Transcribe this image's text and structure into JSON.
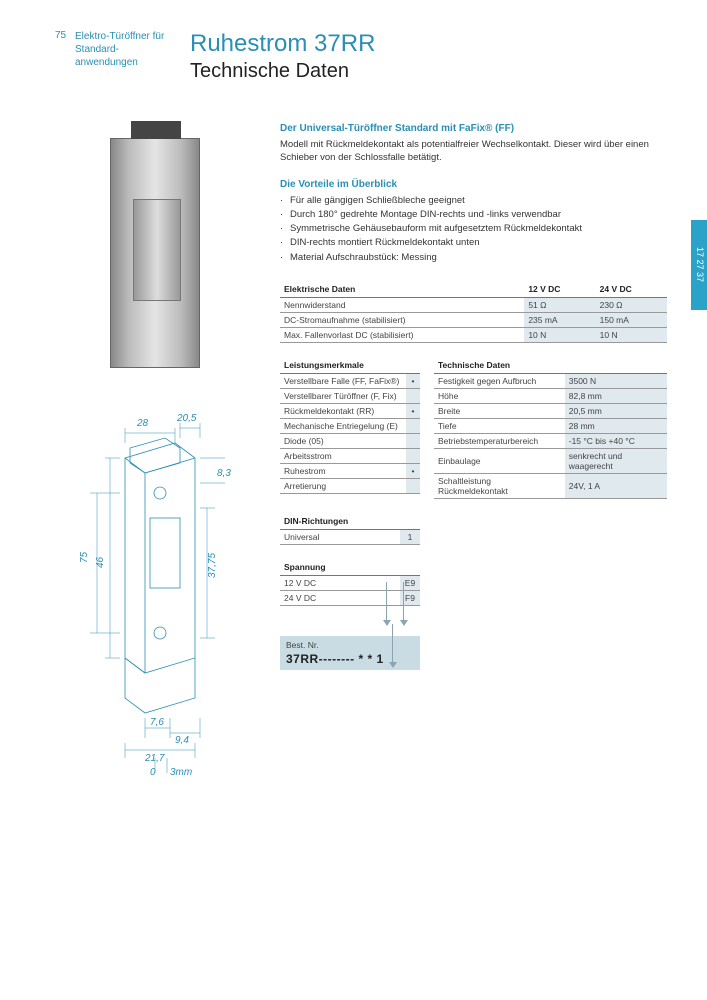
{
  "pageNumber": "75",
  "headerLabel": "Elektro-Türöffner für Standard-anwendungen",
  "titleMain": "Ruhestrom 37RR",
  "titleSub": "Technische Daten",
  "sideTab": "17 27 37",
  "introHead": "Der Universal-Türöffner Standard mit FaFix® (FF)",
  "introText": "Modell mit Rückmeldekontakt als potentialfreier Wechselkontakt. Dieser wird über einen Schieber von der Schlossfalle betätigt.",
  "advHead": "Die Vorteile im Überblick",
  "advantages": [
    "Für alle gängigen Schließbleche geeignet",
    "Durch 180° gedrehte Montage DIN-rechts und -links verwendbar",
    "Symmetrische Gehäusebauform mit aufgesetztem Rückmeldekontakt",
    "DIN-rechts montiert Rückmeldekontakt unten",
    "Material Aufschraubstück: Messing"
  ],
  "elecTable": {
    "title": "Elektrische Daten",
    "cols": [
      "12 V DC",
      "24 V DC"
    ],
    "rows": [
      [
        "Nennwiderstand",
        "51 Ω",
        "230 Ω"
      ],
      [
        "DC-Stromaufnahme (stabilisiert)",
        "235 mA",
        "150 mA"
      ],
      [
        "Max. Fallenvorlast DC (stabilisiert)",
        "10 N",
        "10 N"
      ]
    ]
  },
  "featTable": {
    "title": "Leistungsmerkmale",
    "rows": [
      [
        "Verstellbare Falle (FF, FaFix®)",
        "•"
      ],
      [
        "Verstellbarer Türöffner (F, Fix)",
        ""
      ],
      [
        "Rückmeldekontakt (RR)",
        "•"
      ],
      [
        "Mechanische Entriegelung (E)",
        ""
      ],
      [
        "Diode (05)",
        ""
      ],
      [
        "Arbeitsstrom",
        ""
      ],
      [
        "Ruhestrom",
        "•"
      ],
      [
        "Arretierung",
        ""
      ]
    ]
  },
  "techTable": {
    "title": "Technische Daten",
    "rows": [
      [
        "Festigkeit gegen Aufbruch",
        "3500 N"
      ],
      [
        "Höhe",
        "82,8 mm"
      ],
      [
        "Breite",
        "20,5 mm"
      ],
      [
        "Tiefe",
        "28 mm"
      ],
      [
        "Betriebstemperaturbereich",
        "-15 °C bis +40 °C"
      ],
      [
        "Einbaulage",
        "senkrecht und waagerecht"
      ],
      [
        "Schaltleistung Rückmeldekontakt",
        "24V, 1 A"
      ]
    ]
  },
  "dinTable": {
    "title": "DIN-Richtungen",
    "rows": [
      [
        "Universal",
        "1"
      ]
    ]
  },
  "voltTable": {
    "title": "Spannung",
    "rows": [
      [
        "12 V DC",
        "E9"
      ],
      [
        "24 V DC",
        "F9"
      ]
    ]
  },
  "orderLabel": "Best. Nr.",
  "orderCode": "37RR--------    * * 1",
  "drawing": {
    "dims": {
      "d28": "28",
      "d20_5": "20,5",
      "d8_3": "8,3",
      "d75": "75",
      "d46": "46",
      "d37_75": "37,75",
      "d7_6": "7,6",
      "d9_4": "9,4",
      "d21_7": "21,7",
      "d0": "0",
      "d3mm": "3mm"
    }
  },
  "colors": {
    "brand": "#2a8fb3",
    "tabBg": "#2ba3c9",
    "valBg": "#dfe9ee",
    "orderBg": "#c9dbe3",
    "rule": "#999"
  }
}
